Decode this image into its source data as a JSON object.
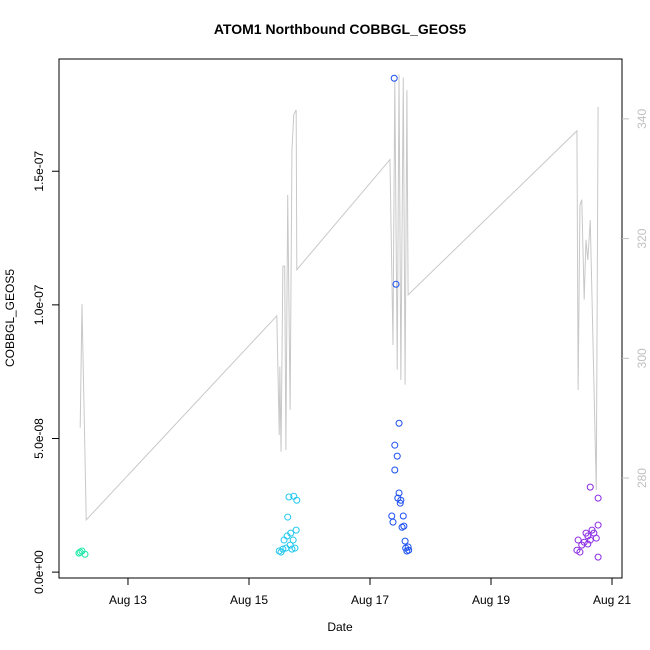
{
  "chart_data": {
    "type": "scatter",
    "title": "ATOM1 Northbound COBBGL_GEOS5",
    "xlabel": "Date",
    "ylabel": "COBBGL_GEOS5",
    "xlim": [
      11.86,
      21.165
    ],
    "xticks": [
      {
        "value": 13,
        "label": "Aug 13"
      },
      {
        "value": 15,
        "label": "Aug 15"
      },
      {
        "value": 17,
        "label": "Aug 17"
      },
      {
        "value": 19,
        "label": "Aug 19"
      },
      {
        "value": 21,
        "label": "Aug 21"
      }
    ],
    "ylim": [
      -2.2e-09,
      1.92e-07
    ],
    "yticks": [
      {
        "value": 0,
        "label": "0.0e+00"
      },
      {
        "value": 5e-08,
        "label": "5.0e-08"
      },
      {
        "value": 1e-07,
        "label": "1.0e-07"
      },
      {
        "value": 1.5e-07,
        "label": "1.5e-07"
      }
    ],
    "y2lim": [
      263.3,
      350.0
    ],
    "y2ticks": [
      280,
      300,
      320,
      340
    ],
    "y2color": "#c0c0c0",
    "series": [
      {
        "color": "#1de9a8",
        "x": [
          12.21,
          12.24,
          12.29,
          12.19
        ],
        "values": [
          7.5e-09,
          7.9e-09,
          6.7e-09,
          7.1e-09
        ]
      },
      {
        "color": "#22c8f0",
        "x": [
          15.5,
          15.53,
          15.56,
          15.58,
          15.61,
          15.63,
          15.64,
          15.66,
          15.68,
          15.69,
          15.71,
          15.73,
          15.74,
          15.78,
          15.79,
          15.76
        ],
        "values": [
          7.9e-09,
          7.5e-09,
          8.6e-09,
          1.2e-08,
          9e-09,
          1.35e-08,
          2.06e-08,
          2.81e-08,
          1.01e-08,
          1.46e-08,
          8.6e-09,
          1.2e-08,
          2.84e-08,
          1.57e-08,
          2.69e-08,
          9e-09
        ]
      },
      {
        "color": "#1a4ef0",
        "x": [
          17.4,
          17.43,
          17.48,
          17.41,
          17.45,
          17.41,
          17.48,
          17.46,
          17.51,
          17.5,
          17.36,
          17.38,
          17.55,
          17.53,
          17.56,
          17.58,
          17.59,
          17.61,
          17.64,
          17.63
        ],
        "values": [
          1.848e-07,
          1.077e-07,
          5.57e-08,
          4.75e-08,
          4.34e-08,
          3.82e-08,
          2.96e-08,
          2.77e-08,
          2.69e-08,
          2.58e-08,
          2.1e-08,
          1.87e-08,
          2.1e-08,
          1.68e-08,
          1.72e-08,
          1.16e-08,
          9e-09,
          7.9e-09,
          8.2e-09,
          9.4e-09
        ]
      },
      {
        "color": "#8a2be2",
        "x": [
          20.42,
          20.44,
          20.47,
          20.5,
          20.54,
          20.57,
          20.6,
          20.64,
          20.64,
          20.67,
          20.7,
          20.74,
          20.77,
          20.77,
          20.77,
          20.6
        ],
        "values": [
          8.2e-09,
          1.2e-08,
          7.5e-09,
          1.01e-08,
          1.12e-08,
          1.46e-08,
          1.35e-08,
          3.18e-08,
          1.2e-08,
          1.57e-08,
          1.46e-08,
          1.27e-08,
          1.76e-08,
          2.77e-08,
          5.6e-09,
          1.05e-08
        ]
      },
      {
        "type": "line",
        "axis": "y2",
        "color": "#c8c8c8",
        "x": [
          12.21,
          12.24,
          12.31,
          15.46,
          15.5,
          15.51,
          15.53,
          15.56,
          15.59,
          15.61,
          15.64,
          15.68,
          15.71,
          15.74,
          15.78,
          15.79,
          17.33,
          17.38,
          17.41,
          17.45,
          17.48,
          17.51,
          17.55,
          17.58,
          17.61,
          17.63,
          20.42,
          20.44,
          20.47,
          20.5,
          20.54,
          20.57,
          20.6,
          20.64,
          20.67,
          20.74,
          20.77
        ],
        "values": [
          288.4,
          309.1,
          273.0,
          307.1,
          287.2,
          298.6,
          284.4,
          315.4,
          315.4,
          284.7,
          327.3,
          291.4,
          334.8,
          340.7,
          341.5,
          314.8,
          333.2,
          302.2,
          346.5,
          298.1,
          347.4,
          296.4,
          346.9,
          295.6,
          344.8,
          310.6,
          338.0,
          294.7,
          325.6,
          326.5,
          309.8,
          319.8,
          316.4,
          323.1,
          309.8,
          278.0,
          342.0
        ]
      }
    ]
  }
}
